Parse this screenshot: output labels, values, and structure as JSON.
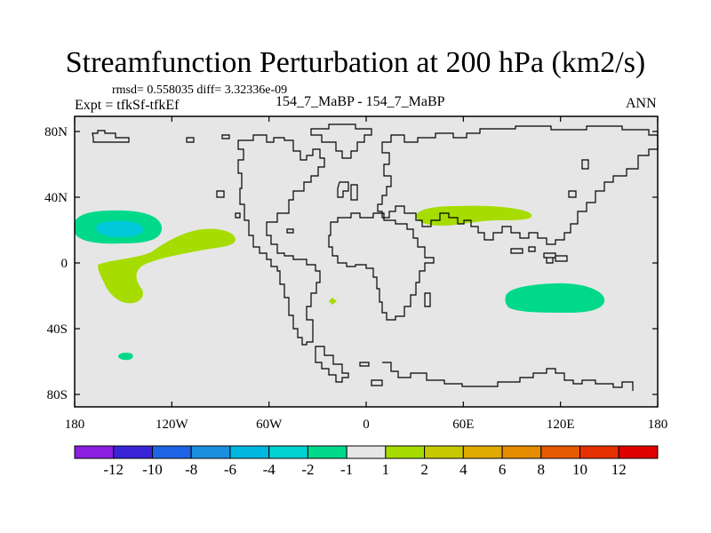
{
  "title": "Streamfunction Perturbation at 200 hPa (km2/s)",
  "stats_line": "rmsd= 0.558035 diff= 3.32336e-09",
  "experiment_line": "Expt = tfkSf-tfkEf",
  "case_line": "154_7_MaBP - 154_7_MaBP",
  "period": "ANN",
  "map": {
    "background_color": "#e6e6e6",
    "coastline_color": "#000000",
    "lon_ticks": [
      {
        "lon": -180,
        "label": "180"
      },
      {
        "lon": -120,
        "label": "120W"
      },
      {
        "lon": -60,
        "label": "60W"
      },
      {
        "lon": 0,
        "label": "0"
      },
      {
        "lon": 60,
        "label": "60E"
      },
      {
        "lon": 120,
        "label": "120E"
      },
      {
        "lon": 180,
        "label": "180"
      }
    ],
    "lat_ticks": [
      {
        "lat": 80,
        "label": "80N"
      },
      {
        "lat": 40,
        "label": "40N"
      },
      {
        "lat": 0,
        "label": "0"
      },
      {
        "lat": -40,
        "label": "40S"
      },
      {
        "lat": -80,
        "label": "80S"
      }
    ]
  },
  "anomalies": [
    {
      "name": "north-pacific-negative-outer",
      "level": "-2",
      "color": "#00d98a"
    },
    {
      "name": "north-pacific-negative-core",
      "level": "-4",
      "color": "#00c8d8"
    },
    {
      "name": "tropical-pacific-positive",
      "level": "1",
      "color": "#a6dc00"
    },
    {
      "name": "south-atlantic-positive-small",
      "level": "1",
      "color": "#a6dc00"
    },
    {
      "name": "south-pacific-negative-small",
      "level": "-2",
      "color": "#00d98a"
    },
    {
      "name": "asia-positive",
      "level": "1",
      "color": "#a6dc00"
    },
    {
      "name": "indian-ocean-negative",
      "level": "-2",
      "color": "#00d98a"
    }
  ],
  "colorbar": {
    "boxes": [
      {
        "color": "#8a1fe0"
      },
      {
        "color": "#3a24d8"
      },
      {
        "color": "#1e64e6"
      },
      {
        "color": "#1a8fe0"
      },
      {
        "color": "#00b7df"
      },
      {
        "color": "#00d2d2"
      },
      {
        "color": "#00d98a"
      },
      {
        "color": "#e6e6e6"
      },
      {
        "color": "#a6dc00"
      },
      {
        "color": "#c8c800"
      },
      {
        "color": "#e0aa00"
      },
      {
        "color": "#e68c00"
      },
      {
        "color": "#e65a00"
      },
      {
        "color": "#e63000"
      },
      {
        "color": "#e00000"
      }
    ],
    "labels": [
      "-12",
      "-10",
      "-8",
      "-6",
      "-4",
      "-2",
      "-1",
      "1",
      "2",
      "4",
      "6",
      "8",
      "10",
      "12"
    ]
  }
}
